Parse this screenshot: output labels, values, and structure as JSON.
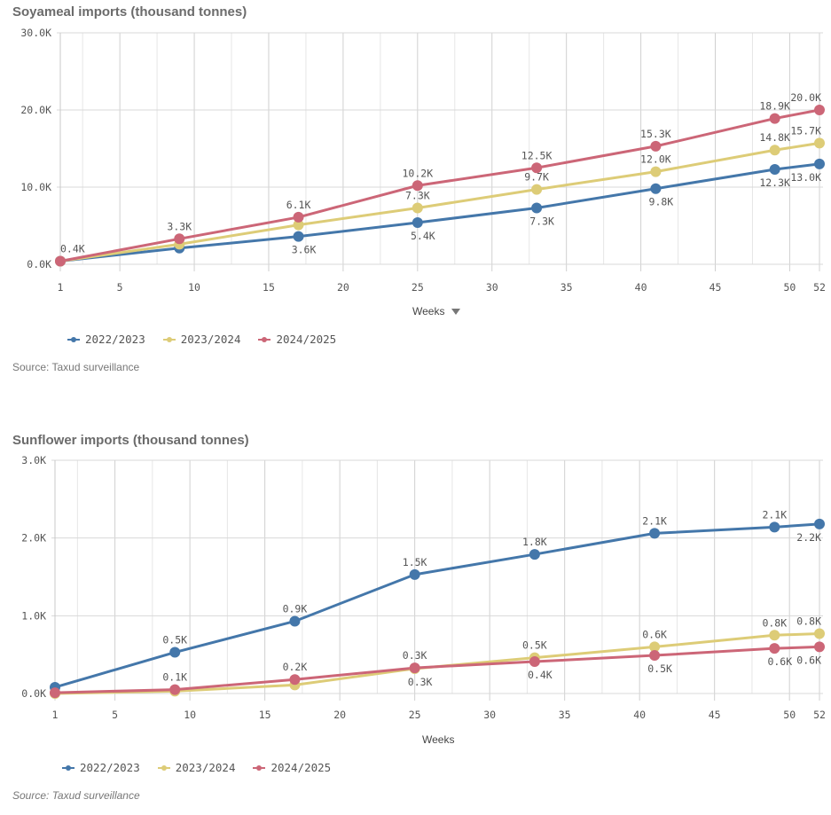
{
  "colors": {
    "s2223": "#4477aa",
    "s2324": "#ddcc77",
    "s2425": "#cc6677"
  },
  "chart_data": [
    {
      "type": "line",
      "title": "Soyameal imports (thousand tonnes)",
      "xlabel": "Weeks",
      "ylabel": "",
      "x": [
        1,
        9,
        17,
        25,
        33,
        41,
        49,
        52
      ],
      "xticks": [
        1,
        5,
        10,
        15,
        20,
        25,
        30,
        35,
        40,
        45,
        50,
        52
      ],
      "xlim": [
        1,
        52
      ],
      "ylim": [
        0,
        30000
      ],
      "yticks": [
        0,
        10000,
        20000,
        30000
      ],
      "ytick_labels": [
        "0.0K",
        "10.0K",
        "20.0K",
        "30.0K"
      ],
      "grid": true,
      "legend": "bottom-left",
      "series": [
        {
          "name": "2022/2023",
          "color": "#4477aa",
          "values": [
            400,
            2100,
            3600,
            5400,
            7300,
            9800,
            12300,
            13000
          ],
          "labels": [
            "",
            "",
            "3.6K",
            "5.4K",
            "7.3K",
            "9.8K",
            "12.3K",
            "13.0K"
          ],
          "label_pos": "below"
        },
        {
          "name": "2023/2024",
          "color": "#ddcc77",
          "values": [
            400,
            2600,
            5100,
            7300,
            9700,
            12000,
            14800,
            15700
          ],
          "labels": [
            "",
            "",
            "",
            "7.3K",
            "9.7K",
            "12.0K",
            "14.8K",
            "15.7K"
          ],
          "label_pos": "above"
        },
        {
          "name": "2024/2025",
          "color": "#cc6677",
          "values": [
            400,
            3300,
            6100,
            10200,
            12500,
            15300,
            18900,
            20000
          ],
          "labels": [
            "0.4K",
            "3.3K",
            "6.1K",
            "10.2K",
            "12.5K",
            "15.3K",
            "18.9K",
            "20.0K"
          ],
          "label_pos": "above"
        }
      ],
      "source": "Source: Taxud surveillance"
    },
    {
      "type": "line",
      "title": "Sunflower imports (thousand tonnes)",
      "xlabel": "Weeks",
      "ylabel": "",
      "x": [
        1,
        9,
        17,
        25,
        33,
        41,
        49,
        52
      ],
      "xticks": [
        1,
        5,
        10,
        15,
        20,
        25,
        30,
        35,
        40,
        45,
        50,
        52
      ],
      "xlim": [
        1,
        52
      ],
      "ylim": [
        0,
        3000
      ],
      "yticks": [
        0,
        1000,
        2000,
        3000
      ],
      "ytick_labels": [
        "0.0K",
        "1.0K",
        "2.0K",
        "3.0K"
      ],
      "grid": true,
      "legend": "bottom-left",
      "series": [
        {
          "name": "2022/2023",
          "color": "#4477aa",
          "values": [
            80,
            530,
            930,
            1530,
            1790,
            2060,
            2140,
            2180
          ],
          "labels": [
            "",
            "0.5K",
            "0.9K",
            "1.5K",
            "1.8K",
            "2.1K",
            "2.1K",
            "2.2K"
          ],
          "label_pos": "mixed"
        },
        {
          "name": "2023/2024",
          "color": "#ddcc77",
          "values": [
            0,
            30,
            110,
            320,
            460,
            600,
            750,
            770
          ],
          "labels": [
            "",
            "",
            "",
            "0.3K",
            "0.5K",
            "0.6K",
            "0.8K",
            "0.8K"
          ],
          "label_pos": "mixed"
        },
        {
          "name": "2024/2025",
          "color": "#cc6677",
          "values": [
            10,
            50,
            180,
            330,
            410,
            490,
            580,
            600
          ],
          "labels": [
            "",
            "0.1K",
            "0.2K",
            "0.3K",
            "0.4K",
            "0.5K",
            "0.6K",
            "0.6K"
          ],
          "label_pos": "mixed"
        }
      ],
      "source": "Source: Taxud surveillance"
    }
  ]
}
